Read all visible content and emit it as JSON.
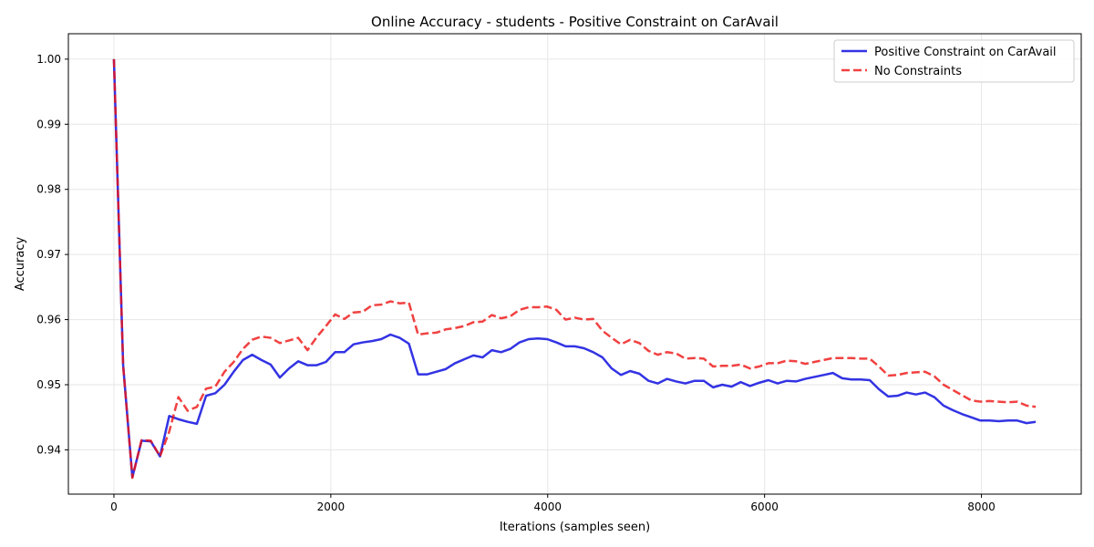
{
  "chart_data": {
    "type": "line",
    "title": "Online Accuracy - students - Positive Constraint on CarAvail",
    "xlabel": "Iterations (samples seen)",
    "ylabel": "Accuracy",
    "xlim": [
      -420,
      8920
    ],
    "ylim": [
      0.9332,
      1.0039
    ],
    "xticks": [
      0,
      2000,
      4000,
      6000,
      8000
    ],
    "xtick_labels": [
      "0",
      "2000",
      "4000",
      "6000",
      "8000"
    ],
    "yticks": [
      0.94,
      0.95,
      0.96,
      0.97,
      0.98,
      0.99,
      1.0
    ],
    "ytick_labels": [
      "0.94",
      "0.95",
      "0.96",
      "0.97",
      "0.98",
      "0.99",
      "1.00"
    ],
    "grid": true,
    "legend_position": "top-right",
    "series": [
      {
        "name": "Positive Constraint on CarAvail",
        "color": "#0000dd",
        "style": "solid",
        "x": [
          0,
          85,
          170,
          255,
          340,
          425,
          510,
          595,
          680,
          765,
          850,
          935,
          1020,
          1105,
          1190,
          1275,
          1360,
          1445,
          1530,
          1615,
          1700,
          1785,
          1870,
          1955,
          2040,
          2125,
          2210,
          2295,
          2380,
          2465,
          2550,
          2635,
          2720,
          2805,
          2890,
          2975,
          3060,
          3145,
          3230,
          3315,
          3400,
          3485,
          3570,
          3655,
          3740,
          3825,
          3910,
          3995,
          4080,
          4165,
          4250,
          4335,
          4420,
          4505,
          4590,
          4675,
          4760,
          4845,
          4930,
          5015,
          5100,
          5185,
          5270,
          5355,
          5440,
          5525,
          5610,
          5695,
          5780,
          5865,
          5950,
          6035,
          6120,
          6205,
          6290,
          6375,
          6460,
          6545,
          6630,
          6715,
          6800,
          6885,
          6970,
          7055,
          7140,
          7225,
          7310,
          7395,
          7480,
          7565,
          7650,
          7735,
          7820,
          7905,
          7990,
          8075,
          8160,
          8245,
          8330,
          8415,
          8500
        ],
        "y": [
          1.0,
          0.953,
          0.9358,
          0.9414,
          0.9413,
          0.939,
          0.9452,
          0.9447,
          0.9443,
          0.944,
          0.9483,
          0.9487,
          0.95,
          0.952,
          0.9538,
          0.9546,
          0.9538,
          0.9531,
          0.9511,
          0.9525,
          0.9536,
          0.953,
          0.953,
          0.9535,
          0.955,
          0.955,
          0.9562,
          0.9565,
          0.9567,
          0.957,
          0.9577,
          0.9572,
          0.9563,
          0.9516,
          0.9516,
          0.952,
          0.9524,
          0.9533,
          0.9539,
          0.9545,
          0.9542,
          0.9553,
          0.955,
          0.9555,
          0.9565,
          0.957,
          0.9571,
          0.957,
          0.9565,
          0.9559,
          0.9559,
          0.9556,
          0.955,
          0.9542,
          0.9525,
          0.9515,
          0.9521,
          0.9517,
          0.9506,
          0.9502,
          0.9509,
          0.9505,
          0.9502,
          0.9506,
          0.9506,
          0.9496,
          0.95,
          0.9497,
          0.9504,
          0.9498,
          0.9503,
          0.9507,
          0.9502,
          0.9506,
          0.9505,
          0.9509,
          0.9512,
          0.9515,
          0.9518,
          0.951,
          0.9508,
          0.9508,
          0.9507,
          0.9493,
          0.9482,
          0.9483,
          0.9488,
          0.9485,
          0.9488,
          0.9481,
          0.9468,
          0.9461,
          0.9455,
          0.945,
          0.9445,
          0.9445,
          0.9444,
          0.9445,
          0.9445,
          0.9441,
          0.9443
        ]
      },
      {
        "name": "No Constraints",
        "color": "#ee1111",
        "style": "dashed",
        "x": [
          0,
          85,
          170,
          255,
          340,
          425,
          510,
          595,
          680,
          765,
          850,
          935,
          1020,
          1105,
          1190,
          1275,
          1360,
          1445,
          1530,
          1615,
          1700,
          1785,
          1870,
          1955,
          2040,
          2125,
          2210,
          2295,
          2380,
          2465,
          2550,
          2635,
          2720,
          2805,
          2890,
          2975,
          3060,
          3145,
          3230,
          3315,
          3400,
          3485,
          3570,
          3655,
          3740,
          3825,
          3910,
          3995,
          4080,
          4165,
          4250,
          4335,
          4420,
          4505,
          4590,
          4675,
          4760,
          4845,
          4930,
          5015,
          5100,
          5185,
          5270,
          5355,
          5440,
          5525,
          5610,
          5695,
          5780,
          5865,
          5950,
          6035,
          6120,
          6205,
          6290,
          6375,
          6460,
          6545,
          6630,
          6715,
          6800,
          6885,
          6970,
          7055,
          7140,
          7225,
          7310,
          7395,
          7480,
          7565,
          7650,
          7735,
          7820,
          7905,
          7990,
          8075,
          8160,
          8245,
          8330,
          8415,
          8500
        ],
        "y": [
          1.0,
          0.953,
          0.9357,
          0.9415,
          0.9414,
          0.939,
          0.9428,
          0.9481,
          0.946,
          0.9466,
          0.9494,
          0.9497,
          0.952,
          0.9535,
          0.9555,
          0.9569,
          0.9574,
          0.9572,
          0.9564,
          0.9568,
          0.9572,
          0.9553,
          0.9573,
          0.959,
          0.9608,
          0.9601,
          0.9611,
          0.9612,
          0.9622,
          0.9623,
          0.9628,
          0.9625,
          0.9626,
          0.9577,
          0.9579,
          0.958,
          0.9585,
          0.9587,
          0.959,
          0.9596,
          0.9597,
          0.9607,
          0.9602,
          0.9605,
          0.9615,
          0.9619,
          0.9619,
          0.962,
          0.9615,
          0.96,
          0.9603,
          0.96,
          0.9601,
          0.9583,
          0.9572,
          0.9562,
          0.9569,
          0.9564,
          0.9552,
          0.9546,
          0.955,
          0.9548,
          0.954,
          0.9541,
          0.954,
          0.9528,
          0.9529,
          0.9529,
          0.9531,
          0.9525,
          0.9528,
          0.9533,
          0.9533,
          0.9537,
          0.9536,
          0.9532,
          0.9535,
          0.9538,
          0.9541,
          0.9541,
          0.9541,
          0.954,
          0.954,
          0.9528,
          0.9514,
          0.9515,
          0.9518,
          0.9519,
          0.952,
          0.9513,
          0.95,
          0.9492,
          0.9484,
          0.9476,
          0.9474,
          0.9475,
          0.9474,
          0.9473,
          0.9474,
          0.9468,
          0.9466
        ]
      }
    ]
  }
}
